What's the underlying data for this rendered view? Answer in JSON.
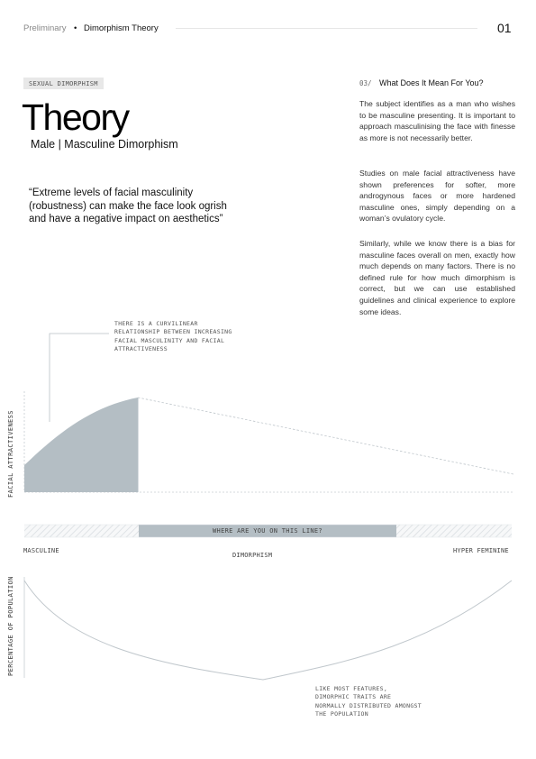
{
  "header": {
    "section": "Preliminary",
    "separator": "•",
    "title": "Dimorphism Theory",
    "page_number": "01"
  },
  "left": {
    "tag": "SEXUAL DIMORPHISM",
    "title": "Theory",
    "subtitle": "Male | Masculine Dimorphism",
    "quote": "“Extreme levels of facial masculinity (robustness) can make the face look ogrish and have a negative impact on aesthetics”"
  },
  "right": {
    "section_number": "03/",
    "section_title": "What Does It Mean For You?",
    "paragraphs": [
      "The subject identifies as a man who wishes to be masculine presenting. It is important to approach masculinising the face with finesse as more is not necessarily better.",
      "Studies on male facial attractiveness have shown preferences for softer, more androgynous faces or more hardened masculine ones, simply depending on a woman’s ovulatory cycle.",
      "Similarly, while we know there is a bias for masculine faces overall on men, exactly how much depends on many factors. There is no defined rule for how much dimorphism is correct, but we can use established guidelines and clinical experience to explore some ideas."
    ]
  },
  "attractiveness_graph": {
    "callout": "THERE IS A CURVILINEAR RELATIONSHIP BETWEEN INCREASING FACIAL MASCULINITY AND FACIAL ATTRACTIVENESS",
    "y_label": "FACIAL ATTRACTIVENESS"
  },
  "scale": {
    "question": "WHERE ARE YOU ON THIS LINE?",
    "left_label": "MASCULINE",
    "center_label": "DIMORPHISM",
    "right_label": "HYPER FEMININE"
  },
  "population_graph": {
    "y_label": "PERCENTAGE OF POPULATION",
    "callout": "LIKE MOST FEATURES, DIMORPHIC TRAITS ARE NORMALLY DISTRIBUTED AMONGST THE POPULATION"
  },
  "colors": {
    "fill": "#b4bec4",
    "line": "#c6cdd2",
    "hatch": "#e3e7ea"
  }
}
